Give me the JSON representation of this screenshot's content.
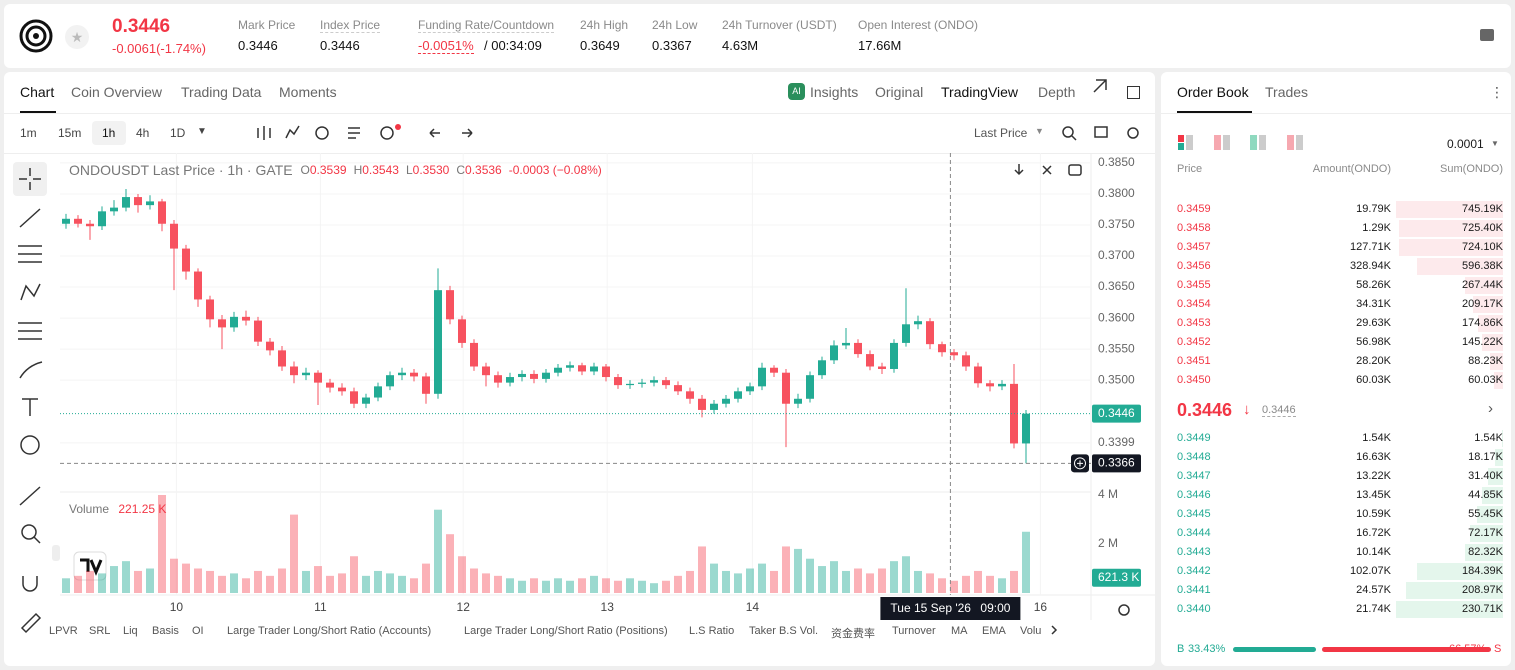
{
  "header": {
    "price": "0.3446",
    "change": "-0.0061(-1.74%)",
    "stats": [
      {
        "label": "Mark Price",
        "value": "0.3446"
      },
      {
        "label": "Index Price",
        "value": "0.3446"
      },
      {
        "label": "Funding Rate/Countdown",
        "value": "-0.0051%",
        "extra": "/ 00:34:09"
      },
      {
        "label": "24h High",
        "value": "0.3649"
      },
      {
        "label": "24h Low",
        "value": "0.3367"
      },
      {
        "label": "24h Turnover (USDT)",
        "value": "4.63M"
      },
      {
        "label": "Open Interest (ONDO)",
        "value": "17.66M"
      }
    ]
  },
  "tabs": [
    "Chart",
    "Coin Overview",
    "Trading Data",
    "Moments"
  ],
  "views": [
    "Insights",
    "Original",
    "TradingView",
    "Depth"
  ],
  "intervals": [
    "1m",
    "15m",
    "1h",
    "4h",
    "1D"
  ],
  "price_type": "Last Price",
  "legend": {
    "labels": [
      "O",
      "H",
      "L",
      "C"
    ],
    "values": [
      "0.3539",
      "0.3543",
      "0.3530",
      "0.3536"
    ],
    "change": "-0.0003 (−0.08%)"
  },
  "chart_data": {
    "type": "candlestick",
    "title": "ONDOUSDT Last Price · 1h · GATE",
    "categories": [
      null,
      null,
      null,
      null,
      null,
      null,
      null,
      null,
      null,
      null,
      null,
      null,
      null,
      null,
      null,
      null,
      null,
      null,
      null,
      null,
      null,
      null,
      null,
      null,
      null,
      null,
      null,
      null,
      null,
      null,
      null,
      null,
      null,
      null,
      null,
      null,
      null,
      null,
      null,
      null,
      null,
      null,
      null,
      null,
      null,
      null,
      null,
      null,
      null,
      null,
      null,
      null,
      null,
      null,
      null,
      null,
      null,
      null,
      null,
      null,
      null,
      null,
      null,
      null,
      null,
      null,
      null,
      null,
      null,
      null,
      null,
      null,
      null,
      null,
      null,
      null,
      null,
      null,
      null,
      null,
      null
    ],
    "open": [
      0.3752,
      0.376,
      0.3752,
      0.3748,
      0.3772,
      0.3778,
      0.3795,
      0.3782,
      0.3788,
      0.3752,
      0.3712,
      0.3675,
      0.363,
      0.3598,
      0.3585,
      0.3602,
      0.3596,
      0.3562,
      0.3548,
      0.3522,
      0.3508,
      0.3512,
      0.3496,
      0.3488,
      0.3482,
      0.3462,
      0.3472,
      0.349,
      0.3508,
      0.3512,
      0.3506,
      0.3478,
      0.3645,
      0.3598,
      0.356,
      0.3522,
      0.3508,
      0.3496,
      0.3505,
      0.351,
      0.3502,
      0.3512,
      0.352,
      0.3524,
      0.3514,
      0.3522,
      0.3505,
      0.3492,
      0.3494,
      0.3496,
      0.35,
      0.3492,
      0.3482,
      0.347,
      0.3452,
      0.3462,
      0.347,
      0.3482,
      0.349,
      0.352,
      0.3512,
      0.3462,
      0.347,
      0.3508,
      0.3532,
      0.3556,
      0.356,
      0.3542,
      0.3522,
      0.3518,
      0.356,
      0.359,
      0.3595,
      0.3558,
      0.3545,
      0.354,
      0.3522,
      0.3495,
      0.349,
      0.3494,
      0.3398
    ],
    "high": [
      0.3768,
      0.3766,
      0.3758,
      0.378,
      0.379,
      0.3808,
      0.38,
      0.3798,
      0.3792,
      0.3758,
      0.3718,
      0.368,
      0.3636,
      0.3605,
      0.361,
      0.3612,
      0.3602,
      0.3568,
      0.3555,
      0.353,
      0.352,
      0.3516,
      0.3502,
      0.3495,
      0.3488,
      0.3478,
      0.3496,
      0.3514,
      0.352,
      0.3518,
      0.3512,
      0.368,
      0.3652,
      0.3604,
      0.3566,
      0.3528,
      0.3514,
      0.3512,
      0.3516,
      0.3516,
      0.3518,
      0.3526,
      0.353,
      0.3528,
      0.3528,
      0.3526,
      0.351,
      0.35,
      0.3502,
      0.3506,
      0.3505,
      0.3498,
      0.3488,
      0.3476,
      0.3468,
      0.3476,
      0.3488,
      0.3496,
      0.3528,
      0.3524,
      0.3518,
      0.3478,
      0.3514,
      0.3538,
      0.3564,
      0.3584,
      0.3566,
      0.3548,
      0.3528,
      0.3566,
      0.3648,
      0.3604,
      0.36,
      0.3562,
      0.355,
      0.3546,
      0.3528,
      0.35,
      0.35,
      0.3526,
      0.3452
    ],
    "low": [
      0.3744,
      0.3746,
      0.3726,
      0.3742,
      0.3765,
      0.3772,
      0.377,
      0.3775,
      0.374,
      0.3645,
      0.3662,
      0.3618,
      0.3585,
      0.355,
      0.3578,
      0.3588,
      0.3555,
      0.354,
      0.3515,
      0.3495,
      0.35,
      0.346,
      0.348,
      0.3475,
      0.3455,
      0.3455,
      0.3466,
      0.3484,
      0.35,
      0.3498,
      0.3462,
      0.347,
      0.359,
      0.3552,
      0.3515,
      0.349,
      0.3488,
      0.349,
      0.3498,
      0.3495,
      0.3496,
      0.3506,
      0.3514,
      0.3508,
      0.3508,
      0.3498,
      0.3486,
      0.3486,
      0.3488,
      0.349,
      0.3486,
      0.3476,
      0.3462,
      0.344,
      0.3446,
      0.3456,
      0.3464,
      0.3476,
      0.3484,
      0.3505,
      0.3392,
      0.3455,
      0.3464,
      0.3502,
      0.3526,
      0.355,
      0.3536,
      0.3516,
      0.351,
      0.3512,
      0.3554,
      0.3582,
      0.355,
      0.3538,
      0.3532,
      0.3515,
      0.3488,
      0.3482,
      0.3484,
      0.339,
      0.3366
    ],
    "close": [
      0.376,
      0.3752,
      0.3748,
      0.3772,
      0.3778,
      0.3795,
      0.3782,
      0.3788,
      0.3752,
      0.3712,
      0.3675,
      0.363,
      0.3598,
      0.3585,
      0.3602,
      0.3596,
      0.3562,
      0.3548,
      0.3522,
      0.3508,
      0.3512,
      0.3496,
      0.3488,
      0.3482,
      0.3462,
      0.3472,
      0.349,
      0.3508,
      0.3512,
      0.3506,
      0.3478,
      0.3645,
      0.3598,
      0.356,
      0.3522,
      0.3508,
      0.3496,
      0.3505,
      0.351,
      0.3502,
      0.3512,
      0.352,
      0.3524,
      0.3514,
      0.3522,
      0.3505,
      0.3492,
      0.3494,
      0.3496,
      0.35,
      0.3492,
      0.3482,
      0.347,
      0.3452,
      0.3462,
      0.347,
      0.3482,
      0.349,
      0.352,
      0.3512,
      0.3462,
      0.347,
      0.3508,
      0.3532,
      0.3556,
      0.356,
      0.3542,
      0.3522,
      0.3518,
      0.356,
      0.359,
      0.3595,
      0.3558,
      0.3545,
      0.354,
      0.3522,
      0.3495,
      0.349,
      0.3494,
      0.3398,
      0.3446
    ],
    "up_color": "#22ab94",
    "down_color": "#f7525f",
    "ylim": [
      0.3323,
      0.3866
    ],
    "yticks": [
      {
        "value": 0.385,
        "label": "0.3850"
      },
      {
        "value": 0.38,
        "label": "0.3800"
      },
      {
        "value": 0.375,
        "label": "0.3750"
      },
      {
        "value": 0.37,
        "label": "0.3700"
      },
      {
        "value": 0.365,
        "label": "0.3650"
      },
      {
        "value": 0.36,
        "label": "0.3600"
      },
      {
        "value": 0.355,
        "label": "0.3550"
      },
      {
        "value": 0.35,
        "label": "0.3500"
      },
      0.3399
    ],
    "grid": true,
    "xticks": [
      {
        "value": 9.2,
        "label": "10"
      },
      {
        "value": 21.2,
        "label": "11"
      },
      {
        "value": 33.1,
        "label": "12"
      },
      {
        "value": 45.1,
        "label": "13"
      },
      {
        "value": 57.2,
        "label": "14"
      },
      {
        "value": 81.2,
        "label": "16"
      }
    ],
    "last_price": 0.3446,
    "crosshair": {
      "x": 73.7,
      "price": 0.3366,
      "date": "Tue 15 Sep '26",
      "time": "09:00"
    },
    "volume": {
      "title": "Volume",
      "current": "221.25 K",
      "values": [
        600000,
        700000,
        900000,
        800000,
        1100000,
        1300000,
        900000,
        1000000,
        4000000,
        1400000,
        1200000,
        1000000,
        900000,
        700000,
        800000,
        600000,
        900000,
        700000,
        1000000,
        3200000,
        900000,
        1100000,
        700000,
        800000,
        1500000,
        700000,
        900000,
        800000,
        700000,
        600000,
        1200000,
        3400000,
        2400000,
        1500000,
        1000000,
        800000,
        700000,
        600000,
        500000,
        600000,
        500000,
        600000,
        500000,
        600000,
        700000,
        600000,
        500000,
        600000,
        500000,
        400000,
        500000,
        700000,
        900000,
        1900000,
        1200000,
        900000,
        800000,
        1000000,
        1200000,
        900000,
        1900000,
        1800000,
        1400000,
        1100000,
        1300000,
        900000,
        1000000,
        800000,
        1000000,
        1300000,
        1500000,
        900000,
        800000,
        600000,
        500000,
        700000,
        900000,
        700000,
        600000,
        900000,
        2500000
      ],
      "ylim": [
        0,
        4000000
      ],
      "yticks": [
        {
          "value": 4000000,
          "label": "4 M"
        },
        {
          "value": 2000000,
          "label": "2 M"
        }
      ],
      "last_tag": {
        "value": 621300,
        "label": "621.3 K"
      }
    }
  },
  "indicators": [
    "LPVR",
    "SRL",
    "Liq",
    "Basis",
    "OI",
    "Large Trader Long/Short Ratio (Accounts)",
    "Large Trader Long/Short Ratio (Positions)",
    "L.S Ratio",
    "Taker B.S Vol.",
    "资金费率",
    "Turnover",
    "MA",
    "EMA",
    "Volu"
  ],
  "order_book": {
    "tabs": [
      "Order Book",
      "Trades"
    ],
    "precision": "0.0001",
    "columns": [
      "Price",
      "Amount(ONDO)",
      "Sum(ONDO)"
    ],
    "asks": {
      "prices": [
        "0.3459",
        "0.3458",
        "0.3457",
        "0.3456",
        "0.3455",
        "0.3454",
        "0.3453",
        "0.3452",
        "0.3451",
        "0.3450"
      ],
      "amounts": [
        "19.79K",
        "1.29K",
        "127.71K",
        "328.94K",
        "58.26K",
        "34.31K",
        "29.63K",
        "56.98K",
        "28.20K",
        "60.03K"
      ],
      "sums": [
        745190,
        725400,
        724100,
        596380,
        267440,
        209170,
        174860,
        145220,
        88230,
        60030
      ],
      "sum_labels": [
        "745.19K",
        "725.40K",
        "724.10K",
        "596.38K",
        "267.44K",
        "209.17K",
        "174.86K",
        "145.22K",
        "88.23K",
        "60.03K"
      ]
    },
    "mid": {
      "price": "0.3446",
      "mark": "0.3446"
    },
    "bids": {
      "prices": [
        "0.3449",
        "0.3448",
        "0.3447",
        "0.3446",
        "0.3445",
        "0.3444",
        "0.3443",
        "0.3442",
        "0.3441",
        "0.3440"
      ],
      "amounts": [
        "1.54K",
        "16.63K",
        "13.22K",
        "13.45K",
        "10.59K",
        "16.72K",
        "10.14K",
        "102.07K",
        "24.57K",
        "21.74K"
      ],
      "sums": [
        1540,
        18170,
        31400,
        44850,
        55450,
        72170,
        82320,
        184390,
        208970,
        230710
      ],
      "sum_labels": [
        "1.54K",
        "18.17K",
        "31.40K",
        "44.85K",
        "55.45K",
        "72.17K",
        "82.32K",
        "184.39K",
        "208.97K",
        "230.71K"
      ]
    },
    "ratio": {
      "buy_label": "B",
      "buy": {
        "value": 33.43,
        "label": "33.43%"
      },
      "sell": {
        "value": 66.57,
        "label": "66.57%"
      },
      "sell_label": "S"
    }
  }
}
